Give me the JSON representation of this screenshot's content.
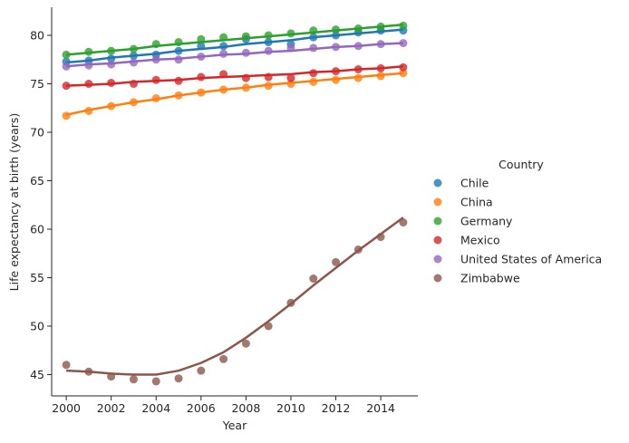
{
  "chart_data": {
    "type": "scatter",
    "title": "",
    "xlabel": "Year",
    "ylabel": "Life expectancy at birth (years)",
    "xlim": [
      1999.35,
      2015.65
    ],
    "ylim": [
      42.8,
      82.9
    ],
    "xticks": [
      2000,
      2002,
      2004,
      2006,
      2008,
      2010,
      2012,
      2014
    ],
    "yticks": [
      45,
      50,
      55,
      60,
      65,
      70,
      75,
      80
    ],
    "legend": {
      "title": "Country",
      "placement": "right"
    },
    "grid": false,
    "x": [
      2000,
      2001,
      2002,
      2003,
      2004,
      2005,
      2006,
      2007,
      2008,
      2009,
      2010,
      2011,
      2012,
      2013,
      2014,
      2015
    ],
    "series": [
      {
        "name": "Chile",
        "color": "#1f77b4",
        "points": [
          77.3,
          77.4,
          77.6,
          77.9,
          78.0,
          78.4,
          78.9,
          78.9,
          79.6,
          79.3,
          79.1,
          79.8,
          80.0,
          80.3,
          80.5,
          80.5
        ],
        "fit": [
          77.2,
          77.4,
          77.7,
          77.9,
          78.1,
          78.4,
          78.6,
          78.8,
          79.1,
          79.3,
          79.5,
          79.8,
          80.0,
          80.2,
          80.4,
          80.6
        ]
      },
      {
        "name": "China",
        "color": "#ff7f0e",
        "points": [
          71.7,
          72.2,
          72.7,
          73.1,
          73.5,
          73.8,
          74.1,
          74.4,
          74.6,
          74.8,
          75.0,
          75.2,
          75.4,
          75.6,
          75.8,
          76.1
        ],
        "fit": [
          71.8,
          72.3,
          72.7,
          73.1,
          73.4,
          73.8,
          74.1,
          74.4,
          74.6,
          74.9,
          75.1,
          75.3,
          75.5,
          75.7,
          75.9,
          76.1
        ]
      },
      {
        "name": "Germany",
        "color": "#2ca02c",
        "points": [
          78.0,
          78.3,
          78.4,
          78.6,
          79.1,
          79.3,
          79.6,
          79.8,
          79.9,
          80.0,
          80.2,
          80.5,
          80.6,
          80.7,
          80.9,
          81.0
        ],
        "fit": [
          78.0,
          78.2,
          78.4,
          78.6,
          78.9,
          79.1,
          79.3,
          79.5,
          79.7,
          79.9,
          80.1,
          80.3,
          80.5,
          80.7,
          80.9,
          81.1
        ]
      },
      {
        "name": "Mexico",
        "color": "#d62728",
        "points": [
          74.8,
          75.0,
          75.1,
          75.0,
          75.4,
          75.3,
          75.7,
          76.0,
          75.6,
          75.7,
          75.6,
          76.1,
          76.3,
          76.5,
          76.6,
          76.7
        ],
        "fit": [
          74.8,
          74.9,
          75.0,
          75.2,
          75.3,
          75.4,
          75.6,
          75.7,
          75.8,
          75.9,
          76.0,
          76.2,
          76.3,
          76.5,
          76.6,
          76.8
        ]
      },
      {
        "name": "United States of America",
        "color": "#9467bd",
        "points": [
          76.8,
          76.9,
          77.0,
          77.2,
          77.5,
          77.5,
          77.8,
          78.1,
          78.2,
          78.4,
          78.7,
          78.7,
          78.8,
          78.9,
          79.1,
          79.2
        ],
        "fit": [
          76.8,
          77.0,
          77.1,
          77.3,
          77.5,
          77.6,
          77.8,
          78.0,
          78.1,
          78.3,
          78.4,
          78.6,
          78.8,
          78.9,
          79.1,
          79.2
        ]
      },
      {
        "name": "Zimbabwe",
        "color": "#8c564b",
        "points": [
          46.0,
          45.3,
          44.8,
          44.5,
          44.3,
          44.6,
          45.4,
          46.6,
          48.2,
          50.0,
          52.4,
          54.9,
          56.6,
          57.9,
          59.2,
          60.7
        ],
        "fit": [
          45.4,
          45.3,
          45.1,
          45.0,
          45.0,
          45.4,
          46.2,
          47.3,
          48.8,
          50.5,
          52.3,
          54.2,
          56.0,
          57.8,
          59.5,
          61.2
        ]
      }
    ]
  }
}
